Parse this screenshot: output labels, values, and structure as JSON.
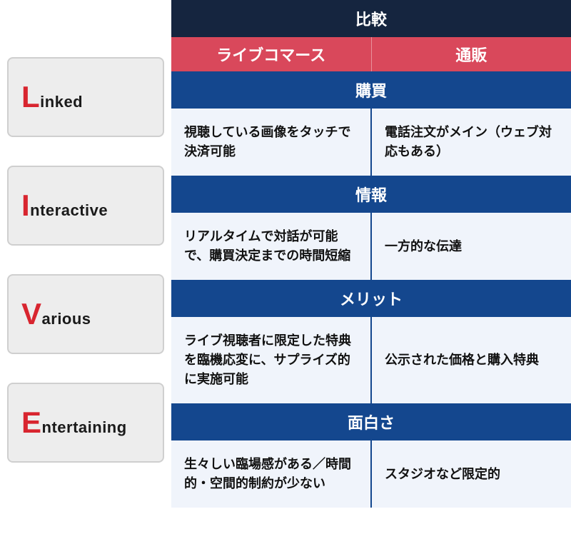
{
  "colors": {
    "navy": "#15253f",
    "red": "#d9485b",
    "blue": "#14478e",
    "body_bg": "#f0f4fb",
    "divider": "#14478e",
    "card_first": "#d8252f"
  },
  "left": {
    "cards": [
      {
        "first": "L",
        "rest": "inked"
      },
      {
        "first": "I",
        "rest": "nteractive"
      },
      {
        "first": "V",
        "rest": "arious"
      },
      {
        "first": "E",
        "rest": "ntertaining"
      }
    ]
  },
  "table": {
    "top_header": "比較",
    "col_headers": [
      "ライブコマース",
      "通販"
    ],
    "sections": [
      {
        "title": "購買",
        "left": "視聴している画像をタッチで決済可能",
        "right": "電話注文がメイン（ウェブ対応もある）"
      },
      {
        "title": "情報",
        "left": "リアルタイムで対話が可能で、購買決定までの時間短縮",
        "right": "一方的な伝達"
      },
      {
        "title": "メリット",
        "left": "ライブ視聴者に限定した特典を臨機応変に、サプライズ的に実施可能",
        "right": "公示された価格と購入特典"
      },
      {
        "title": "面白さ",
        "left": "生々しい臨場感がある／時間的・空間的制約が少ない",
        "right": "スタジオなど限定的"
      }
    ]
  }
}
